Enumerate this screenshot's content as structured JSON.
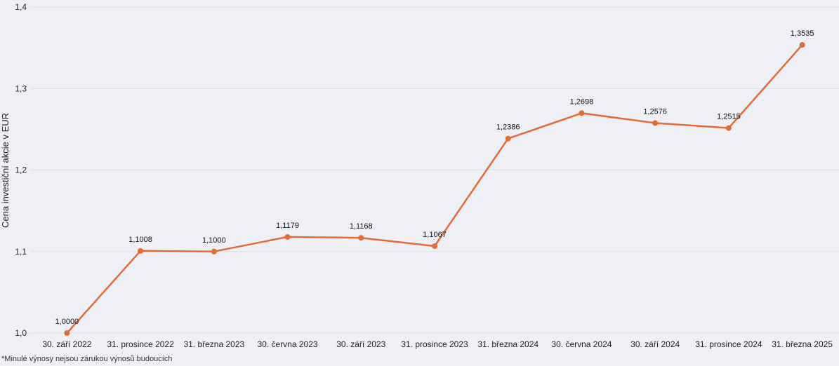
{
  "chart_data": {
    "type": "line",
    "title": "",
    "xlabel": "",
    "ylabel": "Cena investiční akcie v EUR",
    "categories": [
      "30. září 2022",
      "31. prosince 2022",
      "31. března 2023",
      "30. června 2023",
      "30. září 2023",
      "31. prosince 2023",
      "31. března 2024",
      "30. června 2024",
      "30. září 2024",
      "31. prosince 2024",
      "31. března 2025"
    ],
    "values": [
      1.0,
      1.1008,
      1.1,
      1.1179,
      1.1168,
      1.1067,
      1.2386,
      1.2698,
      1.2576,
      1.2515,
      1.3535
    ],
    "value_labels": [
      "1,0000",
      "1,1008",
      "1,1000",
      "1,1179",
      "1,1168",
      "1,1067",
      "1,2386",
      "1,2698",
      "1,2576",
      "1,2515",
      "1,3535"
    ],
    "ylim": [
      1.0,
      1.4
    ],
    "yticks": [
      1.0,
      1.1,
      1.2,
      1.3,
      1.4
    ],
    "ytick_labels": [
      "1,0",
      "1,1",
      "1,2",
      "1,3",
      "1,4"
    ],
    "grid": true,
    "line_color": "#e36b35"
  },
  "footnote": "*Minulé výnosy nejsou zárukou výnosů budoucích"
}
